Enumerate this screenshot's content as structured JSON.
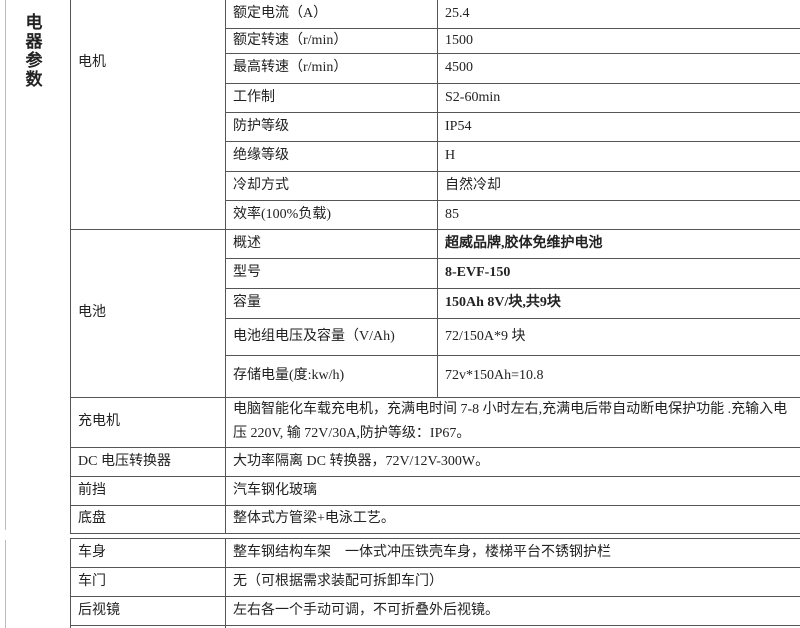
{
  "category": "电器参数",
  "motor": {
    "label": "电机",
    "rows": [
      {
        "param": "额定电流（A）",
        "value": "25.4"
      },
      {
        "param": "额定转速（r/min）",
        "value": "1500"
      },
      {
        "param": "最高转速（r/min）",
        "value": "4500"
      },
      {
        "param": "工作制",
        "value": "S2-60min"
      },
      {
        "param": "防护等级",
        "value": "IP54"
      },
      {
        "param": "绝缘等级",
        "value": "H"
      },
      {
        "param": "冷却方式",
        "value": "自然冷却"
      },
      {
        "param": "效率(100%负载)",
        "value": "85"
      }
    ]
  },
  "battery": {
    "label": "电池",
    "rows": [
      {
        "param": "概述",
        "value": "超威品牌,胶体免维护电池",
        "bold": true
      },
      {
        "param": "型号",
        "value": "8-EVF-150",
        "bold": true
      },
      {
        "param": "容量",
        "value": "150Ah 8V/块,共9块",
        "bold": true
      },
      {
        "param": "电池组电压及容量（V/Ah)",
        "value": "72/150A*9 块"
      },
      {
        "param": "存储电量(度:kw/h)",
        "value": "72v*150Ah=10.8"
      }
    ]
  },
  "others": [
    {
      "label": "充电机",
      "desc": "电脑智能化车载充电机，充满电时间 7-8 小时左右,充满电后带自动断电保护功能 .充输入电压 220V, 输 72V/30A,防护等级：IP67。"
    },
    {
      "label": "DC 电压转换器",
      "desc": "大功率隔离 DC 转换器，72V/12V-300W。"
    },
    {
      "label": "前挡",
      "desc": "汽车钢化玻璃"
    },
    {
      "label": "底盘",
      "desc": "整体式方管梁+电泳工艺。"
    }
  ],
  "body_section": [
    {
      "label": "车身",
      "desc": "整车钢结构车架　一体式冲压铁壳车身，楼梯平台不锈钢护栏"
    },
    {
      "label": "车门",
      "desc": "无（可根据需求装配可拆卸车门）"
    },
    {
      "label": "后视镜",
      "desc": "左右各一个手动可调，不可折叠外后视镜。"
    }
  ]
}
